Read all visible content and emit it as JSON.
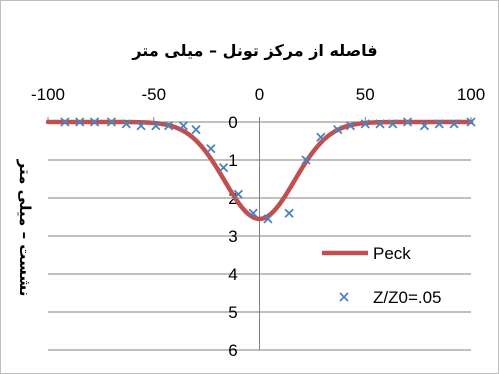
{
  "chart_data": {
    "type": "line",
    "title": "فاصله از مرکز تونل – میلی متر",
    "xlabel": "فاصله از مرکز تونل – میلی متر",
    "ylabel": "نشست – میلی متر",
    "xlim": [
      -100,
      100
    ],
    "ylim": [
      0,
      6
    ],
    "x_ticks": [
      -100,
      -50,
      0,
      50,
      100
    ],
    "y_ticks": [
      0,
      1,
      2,
      3,
      4,
      5,
      6
    ],
    "x_axis_position": "top",
    "y_inverted": true,
    "grid": "horizontal",
    "legend_position": "right",
    "series": [
      {
        "name": "Peck",
        "kind": "line",
        "color": "#c0504d",
        "curve": {
          "smax": 2.55,
          "center": 0,
          "i": 16.5
        },
        "x": [
          -100,
          -90,
          -80,
          -70,
          -60,
          -50,
          -45,
          -40,
          -35,
          -30,
          -25,
          -20,
          -15,
          -10,
          -5,
          0,
          5,
          10,
          15,
          20,
          25,
          30,
          35,
          40,
          45,
          50,
          60,
          70,
          80,
          90,
          100
        ],
        "y": [
          0.0,
          0.0,
          0.0,
          0.0,
          0.0,
          0.03,
          0.06,
          0.14,
          0.27,
          0.49,
          0.81,
          1.22,
          1.69,
          2.12,
          2.44,
          2.55,
          2.44,
          2.12,
          1.69,
          1.22,
          0.81,
          0.49,
          0.27,
          0.14,
          0.06,
          0.03,
          0.0,
          0.0,
          0.0,
          0.0,
          0.0
        ]
      },
      {
        "name": "Z/Z0=.05",
        "kind": "scatter",
        "color": "#4f81bd",
        "marker": "x",
        "x": [
          -92,
          -85,
          -78,
          -70,
          -63,
          -56,
          -49,
          -43,
          -36,
          -30,
          -23,
          -17,
          -10,
          -3,
          4,
          14,
          22,
          29,
          37,
          43,
          50,
          57,
          63,
          70,
          78,
          85,
          92,
          100
        ],
        "y": [
          0.0,
          0.0,
          0.0,
          0.0,
          0.05,
          0.1,
          0.1,
          0.1,
          0.1,
          0.2,
          0.7,
          1.2,
          1.9,
          2.4,
          2.55,
          2.4,
          1.0,
          0.4,
          0.2,
          0.1,
          0.05,
          0.05,
          0.05,
          0.0,
          0.1,
          0.05,
          0.05,
          0.0
        ]
      }
    ]
  }
}
